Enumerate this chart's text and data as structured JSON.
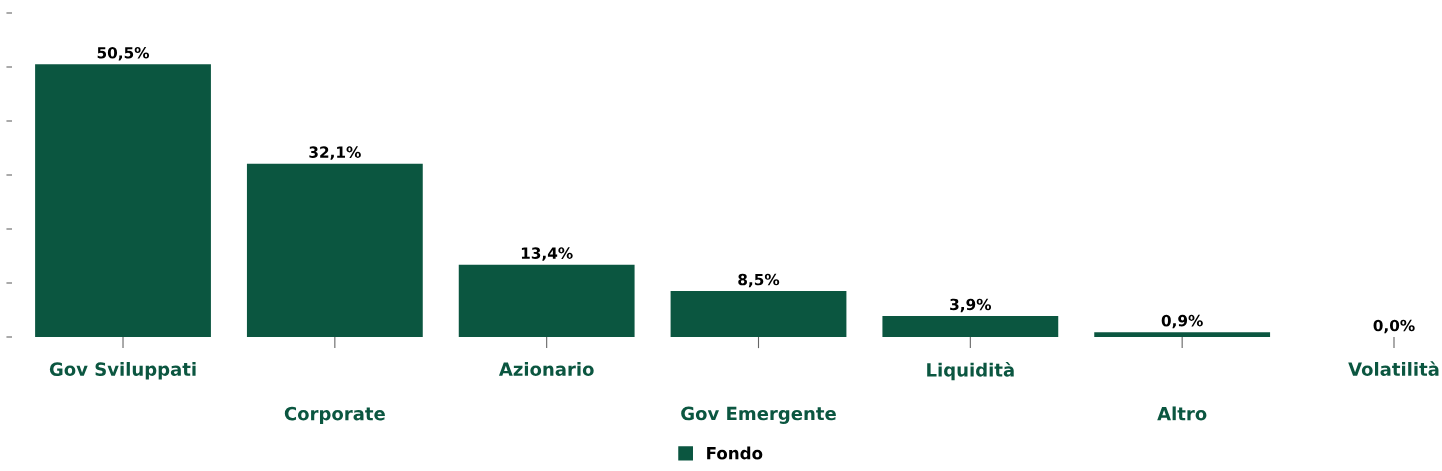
{
  "chart_data": {
    "type": "bar",
    "categories": [
      "Gov Sviluppati",
      "Corporate",
      "Azionario",
      "Gov Emergente",
      "Liquidità",
      "Altro",
      "Volatilità"
    ],
    "series": [
      {
        "name": "Fondo",
        "color": "#0b5640",
        "values": [
          50.5,
          32.1,
          13.4,
          8.5,
          3.9,
          0.9,
          0.0
        ],
        "value_labels": [
          "50,5%",
          "32,1%",
          "13,4%",
          "8,5%",
          "3,9%",
          "0,9%",
          "0,0%"
        ]
      }
    ],
    "yticks": [
      {
        "value": 0,
        "label": null
      },
      {
        "value": 10,
        "label": null
      },
      {
        "value": 20,
        "label": null
      },
      {
        "value": 30,
        "label": null
      },
      {
        "value": 40,
        "label": null
      },
      {
        "value": 50,
        "label": null
      },
      {
        "value": 60,
        "label": null
      }
    ],
    "tick_labels": "x",
    "grid": false,
    "legend": "bottom"
  }
}
